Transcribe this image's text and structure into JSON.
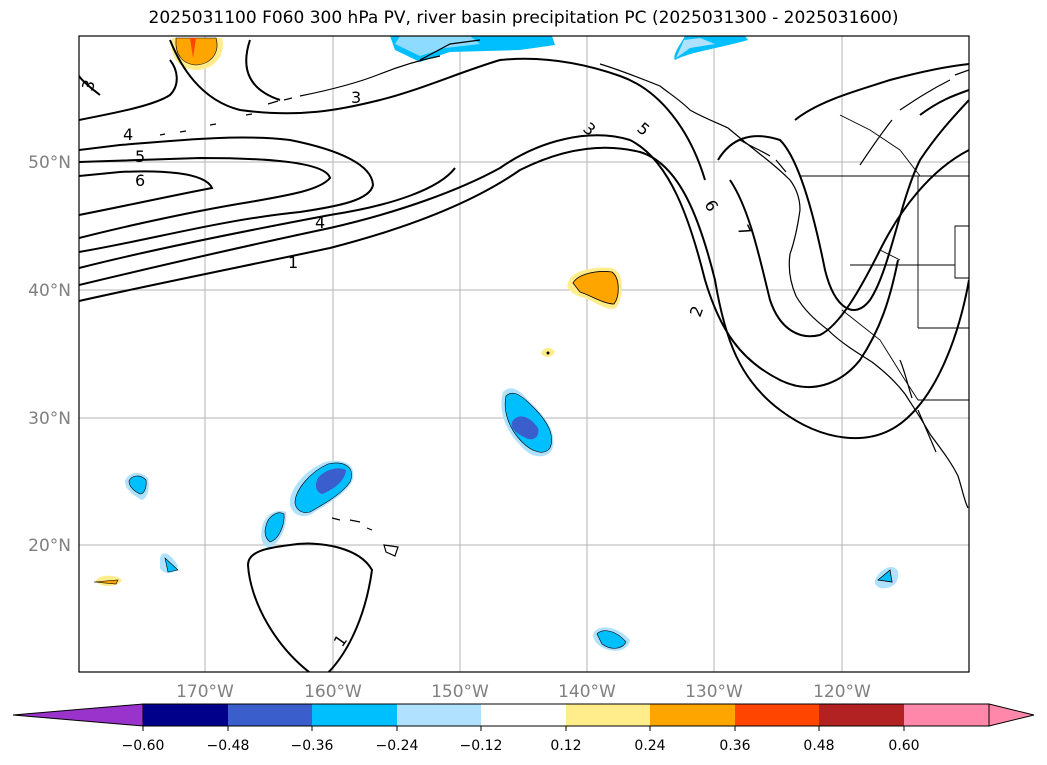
{
  "title": "2025031100 F060 300 hPa PV, river basin precipitation PC (2025031300 - 2025031600)",
  "map": {
    "lon_ticks": [
      "170°W",
      "160°W",
      "150°W",
      "140°W",
      "130°W",
      "120°W"
    ],
    "lat_ticks": [
      "50°N",
      "40°N",
      "30°N",
      "20°N"
    ],
    "contour_labels": [
      "3",
      "4",
      "5",
      "6",
      "3",
      "4",
      "1",
      "3",
      "5",
      "6",
      "7",
      "2",
      "1"
    ],
    "gridlines": true
  },
  "colorbar": {
    "ticks": [
      "−0.60",
      "−0.48",
      "−0.36",
      "−0.24",
      "−0.12",
      "0.12",
      "0.24",
      "0.36",
      "0.48",
      "0.60"
    ],
    "colors": [
      "#9933cc",
      "#00008b",
      "#3a5fcd",
      "#00bfff",
      "#b0e2ff",
      "#ffffff",
      "#ffec8b",
      "#ffa500",
      "#ff4500",
      "#b22222",
      "#ff88aa"
    ]
  }
}
